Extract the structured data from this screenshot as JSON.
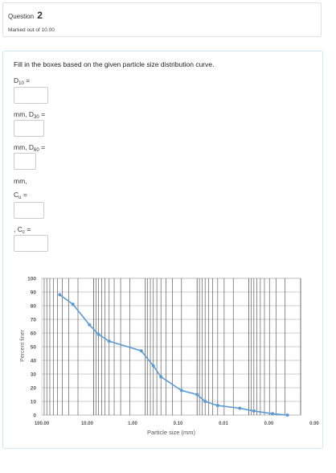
{
  "question": {
    "label": "Question",
    "number": "2",
    "marks": "Marked out of 10.00"
  },
  "prompt": "Fill in the boxes based on the given particle size distribution curve.",
  "labels": {
    "d10_base": "D",
    "d10_sub": "10",
    "d10_suffix": " =",
    "mm_d30_pre": "mm, D",
    "d30_sub": "30",
    "d30_suffix": " =",
    "mm_d60_pre": "mm, D",
    "d60_sub": "60",
    "d60_suffix": " =",
    "mm_comma": "mm,",
    "cu_base": "C",
    "cu_sub": "u",
    "cu_suffix": " =",
    "cc_pre": ", C",
    "cc_sub": "c",
    "cc_suffix": " ="
  },
  "inputs": {
    "d10": "",
    "d30": "",
    "d60": "",
    "cu": "",
    "cc": ""
  },
  "chart_data": {
    "type": "line",
    "xlabel": "Particle size (mm)",
    "ylabel": "Percent finer",
    "x_scale": "log",
    "x_reversed": true,
    "xlim": [
      100,
      0.001
    ],
    "ylim": [
      0,
      100
    ],
    "x_tick_labels": [
      "100.00",
      "10.00",
      "1.00",
      "0.10",
      "0.01",
      "0.00",
      "0.00"
    ],
    "y_ticks": [
      0,
      10,
      20,
      30,
      40,
      50,
      60,
      70,
      80,
      90,
      100
    ],
    "grid": true,
    "series": [
      {
        "color": "#5b9bd5",
        "x": [
          45,
          25,
          12,
          8,
          5,
          1.2,
          0.7,
          0.5,
          0.2,
          0.1,
          0.07,
          0.04,
          0.015,
          0.008,
          0.0035,
          0.0018
        ],
        "y": [
          88,
          81,
          66,
          59,
          54,
          47,
          36,
          28,
          18,
          15,
          10,
          7,
          5,
          3,
          1,
          0
        ]
      }
    ]
  }
}
